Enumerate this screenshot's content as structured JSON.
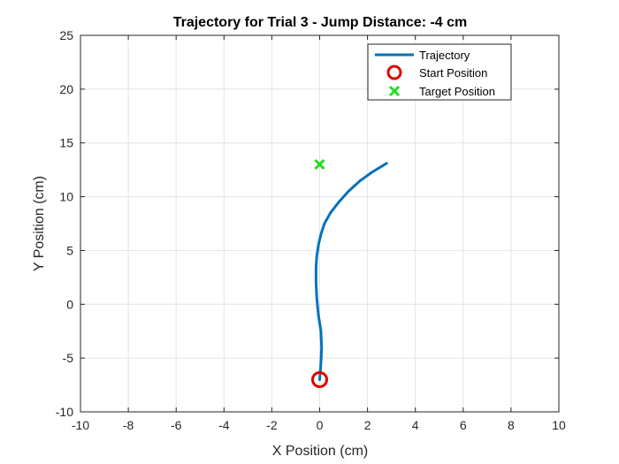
{
  "chart_data": {
    "type": "line",
    "title": "Trajectory for Trial 3 - Jump Distance: -4 cm",
    "xlabel": "X Position (cm)",
    "ylabel": "Y Position (cm)",
    "xlim": [
      -10,
      10
    ],
    "ylim": [
      -10,
      25
    ],
    "xticks": [
      -10,
      -8,
      -6,
      -4,
      -2,
      0,
      2,
      4,
      6,
      8,
      10
    ],
    "yticks": [
      -10,
      -5,
      0,
      5,
      10,
      15,
      20,
      25
    ],
    "xtick_labels": [
      "-10",
      "-8",
      "-6",
      "-4",
      "-2",
      "0",
      "2",
      "4",
      "6",
      "8",
      "10"
    ],
    "ytick_labels": [
      "-10",
      "-5",
      "0",
      "5",
      "10",
      "15",
      "20",
      "25"
    ],
    "grid": true,
    "legend_position": "top-right",
    "series": [
      {
        "name": "Trajectory",
        "kind": "line",
        "color": "#0072BD",
        "x": [
          0.0,
          0.05,
          0.08,
          0.05,
          -0.05,
          -0.12,
          -0.15,
          -0.15,
          -0.12,
          -0.05,
          0.05,
          0.2,
          0.45,
          0.8,
          1.2,
          1.7,
          2.2,
          2.8
        ],
        "y": [
          -7.0,
          -5.5,
          -4.0,
          -2.5,
          -1.0,
          0.5,
          2.0,
          3.5,
          4.5,
          5.5,
          6.5,
          7.5,
          8.5,
          9.5,
          10.5,
          11.5,
          12.3,
          13.1
        ]
      },
      {
        "name": "Start Position",
        "kind": "marker-circle",
        "color": "#E00000",
        "x": [
          0.0
        ],
        "y": [
          -7.0
        ]
      },
      {
        "name": "Target Position",
        "kind": "marker-x",
        "color": "#22DD22",
        "x": [
          0.0
        ],
        "y": [
          13.0
        ]
      }
    ]
  }
}
